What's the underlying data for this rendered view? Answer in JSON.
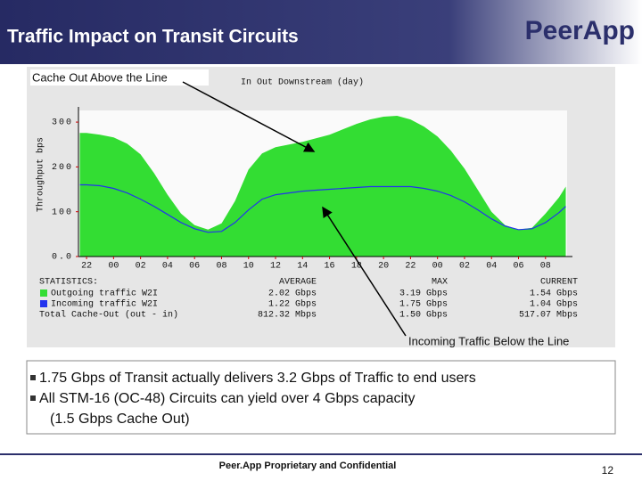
{
  "header": {
    "title": "Traffic Impact on Transit Circuits",
    "logo": "PeerApp"
  },
  "chart_data": {
    "type": "area",
    "title": "In Out Downstream (day)",
    "ylabel": "Throughput bps",
    "annotations": [
      "Cache Out Above the Line",
      "Incoming Traffic Below the Line"
    ],
    "x": [
      -0.5,
      0,
      1,
      2,
      3,
      4,
      5,
      6,
      7,
      8,
      9,
      10,
      11,
      12,
      13,
      14,
      15,
      16,
      17,
      18,
      19,
      20,
      21,
      22,
      23,
      24,
      25,
      26,
      27,
      28,
      29,
      30,
      31,
      32,
      33,
      34,
      35,
      35.5
    ],
    "xlim": [
      -0.6,
      35.6
    ],
    "xticks": [
      {
        "value": 0,
        "label": "22"
      },
      {
        "value": 2,
        "label": "00"
      },
      {
        "value": 4,
        "label": "02"
      },
      {
        "value": 6,
        "label": "04"
      },
      {
        "value": 8,
        "label": "06"
      },
      {
        "value": 10,
        "label": "08"
      },
      {
        "value": 12,
        "label": "10"
      },
      {
        "value": 14,
        "label": "12"
      },
      {
        "value": 16,
        "label": "14"
      },
      {
        "value": 18,
        "label": "16"
      },
      {
        "value": 20,
        "label": "18"
      },
      {
        "value": 22,
        "label": "20"
      },
      {
        "value": 24,
        "label": "22"
      },
      {
        "value": 26,
        "label": "00"
      },
      {
        "value": 28,
        "label": "02"
      },
      {
        "value": 30,
        "label": "04"
      },
      {
        "value": 32,
        "label": "06"
      },
      {
        "value": 34,
        "label": "08"
      }
    ],
    "ylim": [
      0,
      326
    ],
    "yticks": [
      {
        "value": 0,
        "label": "0.0"
      },
      100,
      200,
      300
    ],
    "series": [
      {
        "name": "Outgoing traffic W2I",
        "color": "#33dd33",
        "values": [
          276,
          276,
          272,
          266,
          252,
          228,
          186,
          138,
          96,
          70,
          60,
          74,
          124,
          194,
          230,
          244,
          250,
          256,
          264,
          272,
          284,
          296,
          306,
          312,
          314,
          306,
          290,
          268,
          236,
          196,
          148,
          100,
          70,
          60,
          64,
          96,
          132,
          156
        ]
      },
      {
        "name": "Incoming traffic W2I",
        "color": "#2233ee",
        "values": [
          160,
          160,
          158,
          152,
          142,
          128,
          112,
          94,
          76,
          62,
          54,
          56,
          76,
          104,
          128,
          138,
          142,
          146,
          148,
          150,
          152,
          154,
          156,
          156,
          156,
          156,
          152,
          146,
          136,
          122,
          104,
          84,
          68,
          60,
          62,
          76,
          98,
          112
        ]
      }
    ]
  },
  "statistics": {
    "heading": "STATISTICS:",
    "columns": [
      "AVERAGE",
      "MAX",
      "CURRENT"
    ],
    "rows": [
      [
        "2.02 Gbps",
        "3.19 Gbps",
        "1.54 Gbps"
      ],
      [
        "1.22 Gbps",
        "1.75 Gbps",
        "1.04 Gbps"
      ],
      [
        "812.32 Mbps",
        "1.50 Gbps",
        "517.07 Mbps"
      ]
    ],
    "total_label": "Total Cache-Out (out - in)"
  },
  "bullets": [
    "1.75 Gbps of Transit actually delivers 3.2 Gbps of Traffic to end users",
    "All STM-16 (OC-48) Circuits can yield over 4 Gbps capacity"
  ],
  "bullet_continuation": "(1.5 Gbps Cache Out)",
  "footer": {
    "text": "Peer.App Proprietary and Confidential",
    "page": "12"
  }
}
